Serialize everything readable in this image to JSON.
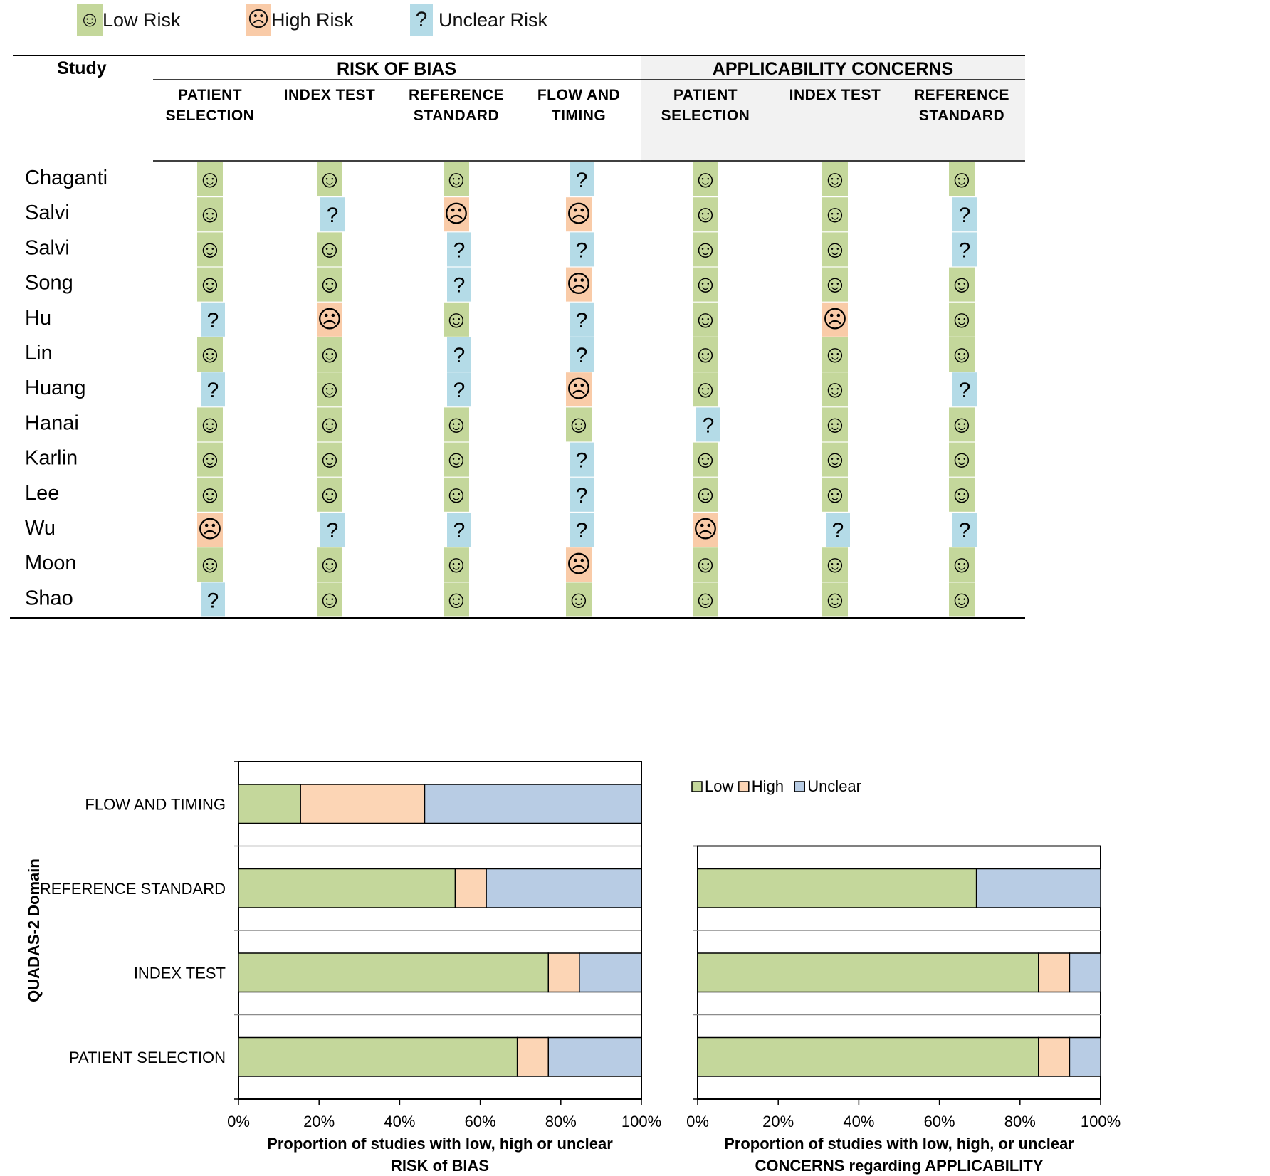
{
  "legend": {
    "low": {
      "label": "Low Risk",
      "symbol": "☺",
      "color": "#c4d79b"
    },
    "high": {
      "label": "High Risk",
      "symbol": "☹",
      "color": "#f9cba8"
    },
    "unclear": {
      "label": "Unclear Risk",
      "symbol": "?",
      "color": "#b4dbe7"
    }
  },
  "table": {
    "study_header": "Study",
    "groups": [
      {
        "label": "RISK OF BIAS",
        "columns": [
          [
            "PATIENT",
            "SELECTION"
          ],
          [
            "INDEX TEST"
          ],
          [
            "REFERENCE",
            "STANDARD"
          ],
          [
            "FLOW AND",
            "TIMING"
          ]
        ]
      },
      {
        "label": "APPLICABILITY CONCERNS",
        "columns": [
          [
            "PATIENT",
            "SELECTION"
          ],
          [
            "INDEX TEST"
          ],
          [
            "REFERENCE",
            "STANDARD"
          ]
        ]
      }
    ],
    "rows": [
      {
        "study": "Chaganti",
        "ratings": [
          "L",
          "L",
          "L",
          "U",
          "L",
          "L",
          "L"
        ]
      },
      {
        "study": "Salvi",
        "ratings": [
          "L",
          "U",
          "H",
          "H",
          "L",
          "L",
          "U"
        ]
      },
      {
        "study": "Salvi",
        "ratings": [
          "L",
          "L",
          "U",
          "U",
          "L",
          "L",
          "U"
        ]
      },
      {
        "study": "Song",
        "ratings": [
          "L",
          "L",
          "U",
          "H",
          "L",
          "L",
          "L"
        ]
      },
      {
        "study": "Hu",
        "ratings": [
          "U",
          "H",
          "L",
          "U",
          "L",
          "H",
          "L"
        ]
      },
      {
        "study": "Lin",
        "ratings": [
          "L",
          "L",
          "U",
          "U",
          "L",
          "L",
          "L"
        ]
      },
      {
        "study": "Huang",
        "ratings": [
          "U",
          "L",
          "U",
          "H",
          "L",
          "L",
          "U"
        ]
      },
      {
        "study": "Hanai",
        "ratings": [
          "L",
          "L",
          "L",
          "L",
          "U",
          "L",
          "L"
        ]
      },
      {
        "study": "Karlin",
        "ratings": [
          "L",
          "L",
          "L",
          "U",
          "L",
          "L",
          "L"
        ]
      },
      {
        "study": "Lee",
        "ratings": [
          "L",
          "L",
          "L",
          "U",
          "L",
          "L",
          "L"
        ]
      },
      {
        "study": "Wu",
        "ratings": [
          "H",
          "U",
          "U",
          "U",
          "H",
          "U",
          "U"
        ]
      },
      {
        "study": "Moon",
        "ratings": [
          "L",
          "L",
          "L",
          "H",
          "L",
          "L",
          "L"
        ]
      },
      {
        "study": "Shao",
        "ratings": [
          "U",
          "L",
          "L",
          "L",
          "L",
          "L",
          "L"
        ]
      }
    ]
  },
  "chart_data": [
    {
      "type": "bar",
      "orientation": "horizontal",
      "stacked": true,
      "title": "",
      "ylabel": "QUADAS-2 Domain",
      "xlabel": [
        "Proportion of studies with low, high or unclear",
        "RISK of BIAS"
      ],
      "categories": [
        "FLOW AND TIMING",
        "REFERENCE STANDARD",
        "INDEX TEST",
        "PATIENT SELECTION"
      ],
      "series": [
        {
          "name": "Low",
          "color": "#c4d79b",
          "values": [
            15.4,
            53.8,
            76.9,
            69.2
          ]
        },
        {
          "name": "High",
          "color": "#fcd5b5",
          "values": [
            30.8,
            7.7,
            7.7,
            7.7
          ]
        },
        {
          "name": "Unclear",
          "color": "#b8cce4",
          "values": [
            53.8,
            38.5,
            15.4,
            23.1
          ]
        }
      ],
      "xlim": [
        0,
        100
      ],
      "xticks": [
        "0%",
        "20%",
        "40%",
        "60%",
        "80%",
        "100%"
      ]
    },
    {
      "type": "bar",
      "orientation": "horizontal",
      "stacked": true,
      "title": "",
      "xlabel": [
        "Proportion of studies with low, high, or unclear",
        "CONCERNS regarding APPLICABILITY"
      ],
      "categories": [
        "REFERENCE STANDARD",
        "INDEX TEST",
        "PATIENT SELECTION"
      ],
      "series": [
        {
          "name": "Low",
          "color": "#c4d79b",
          "values": [
            69.2,
            84.6,
            84.6
          ]
        },
        {
          "name": "High",
          "color": "#fcd5b5",
          "values": [
            0,
            7.7,
            7.7
          ]
        },
        {
          "name": "Unclear",
          "color": "#b8cce4",
          "values": [
            30.8,
            7.7,
            7.7
          ]
        }
      ],
      "xlim": [
        0,
        100
      ],
      "xticks": [
        "0%",
        "20%",
        "40%",
        "60%",
        "80%",
        "100%"
      ],
      "legend": [
        "Low",
        "High",
        "Unclear"
      ]
    }
  ]
}
